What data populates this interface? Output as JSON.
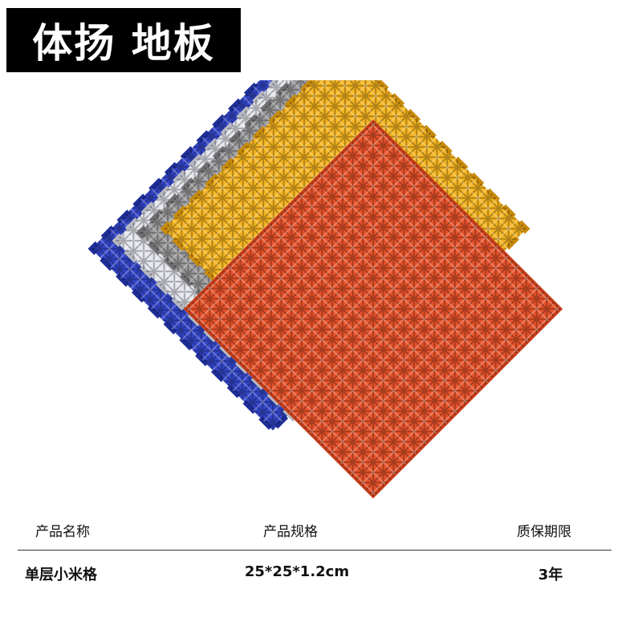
{
  "header": {
    "title": "体扬 地板"
  },
  "table": {
    "columns": [
      "产品名称",
      "产品规格",
      "质保期限"
    ],
    "rows": [
      [
        "单层小米格",
        "25*25*1.2cm",
        "3年"
      ]
    ]
  }
}
